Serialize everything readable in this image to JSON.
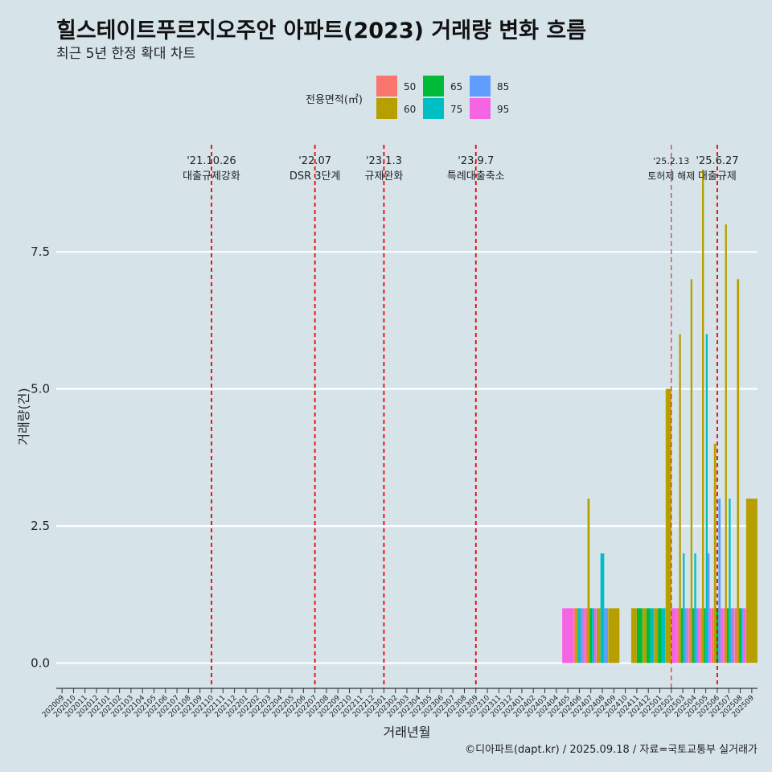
{
  "title": "힐스테이트푸르지오주안 아파트(2023) 거래량 변화 흐름",
  "subtitle": "최근 5년 한정 확대 차트",
  "caption": "©디아파트(dapt.kr) / 2025.09.18 / 자료=국토교통부 실거래가",
  "colors": {
    "50": "#f8766d",
    "60": "#b79f00",
    "65": "#00ba38",
    "75": "#00bfc4",
    "85": "#619cff",
    "95": "#f564e3",
    "grid": "#ffffff",
    "policy": "#ee0000"
  },
  "chart_data": {
    "type": "bar",
    "title": "힐스테이트푸르지오주안 아파트(2023) 거래량 변화 흐름",
    "subtitle": "최근 5년 한정 확대 차트",
    "xlabel": "거래년월",
    "ylabel": "거래량(건)",
    "ylim": [
      -0.3,
      9.6
    ],
    "yticks": [
      0.0,
      2.5,
      5.0,
      7.5
    ],
    "ytick_labels": [
      "0.0",
      "2.5",
      "5.0",
      "7.5"
    ],
    "grid": true,
    "legend": {
      "title": "전용면적(㎡)",
      "position": "top",
      "entries": [
        "50",
        "60",
        "65",
        "75",
        "85",
        "95"
      ]
    },
    "categories": [
      "202009",
      "202010",
      "202011",
      "202012",
      "202101",
      "202102",
      "202103",
      "202104",
      "202105",
      "202106",
      "202107",
      "202108",
      "202109",
      "202110",
      "202111",
      "202112",
      "202201",
      "202202",
      "202203",
      "202204",
      "202205",
      "202206",
      "202207",
      "202208",
      "202209",
      "202210",
      "202211",
      "202212",
      "202301",
      "202302",
      "202303",
      "202304",
      "202305",
      "202306",
      "202307",
      "202308",
      "202309",
      "202310",
      "202311",
      "202312",
      "202401",
      "202402",
      "202403",
      "202404",
      "202405",
      "202406",
      "202407",
      "202408",
      "202409",
      "202410",
      "202411",
      "202412",
      "202501",
      "202502",
      "202503",
      "202504",
      "202505",
      "202506",
      "202507",
      "202508",
      "202509"
    ],
    "series": [
      {
        "name": "50",
        "color": "#f8766d",
        "values": {
          "202406": 1,
          "202407": 1,
          "202503": 1,
          "202504": 1,
          "202505": 1,
          "202506": 1,
          "202507": 1,
          "202508": 1
        }
      },
      {
        "name": "60",
        "color": "#b79f00",
        "values": {
          "202406": 1,
          "202407": 3,
          "202408": 1,
          "202409": 1,
          "202411": 1,
          "202412": 1,
          "202501": 1,
          "202502": 5,
          "202503": 6,
          "202504": 7,
          "202505": 9,
          "202506": 4,
          "202507": 8,
          "202508": 7,
          "202509": 3
        }
      },
      {
        "name": "65",
        "color": "#00ba38",
        "values": {
          "202407": 1,
          "202411": 1,
          "202412": 1,
          "202501": 1,
          "202503": 1,
          "202504": 1,
          "202505": 1,
          "202506": 1,
          "202507": 1,
          "202508": 1
        }
      },
      {
        "name": "75",
        "color": "#00bfc4",
        "values": {
          "202406": 1,
          "202407": 1,
          "202408": 2,
          "202412": 1,
          "202501": 1,
          "202503": 2,
          "202504": 2,
          "202505": 6,
          "202507": 3
        }
      },
      {
        "name": "85",
        "color": "#619cff",
        "values": {
          "202406": 1,
          "202408": 1,
          "202503": 1,
          "202504": 1,
          "202505": 2,
          "202506": 3,
          "202507": 1,
          "202508": 1
        }
      },
      {
        "name": "95",
        "color": "#f564e3",
        "values": {
          "202405": 1,
          "202406": 1,
          "202407": 1,
          "202502": 1,
          "202503": 1,
          "202504": 1,
          "202505": 1,
          "202506": 1,
          "202507": 1,
          "202508": 1
        }
      }
    ],
    "annotations": [
      {
        "month": "202110",
        "date": "'21.10.26",
        "text": "대출규제강화",
        "style": "dashed"
      },
      {
        "month": "202207",
        "date": "'22.07",
        "text": "DSR 3단계",
        "style": "dashed"
      },
      {
        "month": "202301",
        "date": "'23.1.3",
        "text": "규제완화",
        "style": "dashed"
      },
      {
        "month": "202309",
        "date": "'23.9.7",
        "text": "특례대출축소",
        "style": "dashed"
      },
      {
        "month": "202502",
        "date": "'25.2.13",
        "text": "토허제 해제",
        "style": "thin"
      },
      {
        "month": "202506",
        "date": "'25.6.27",
        "text": "대출규제",
        "style": "dashed"
      }
    ]
  }
}
